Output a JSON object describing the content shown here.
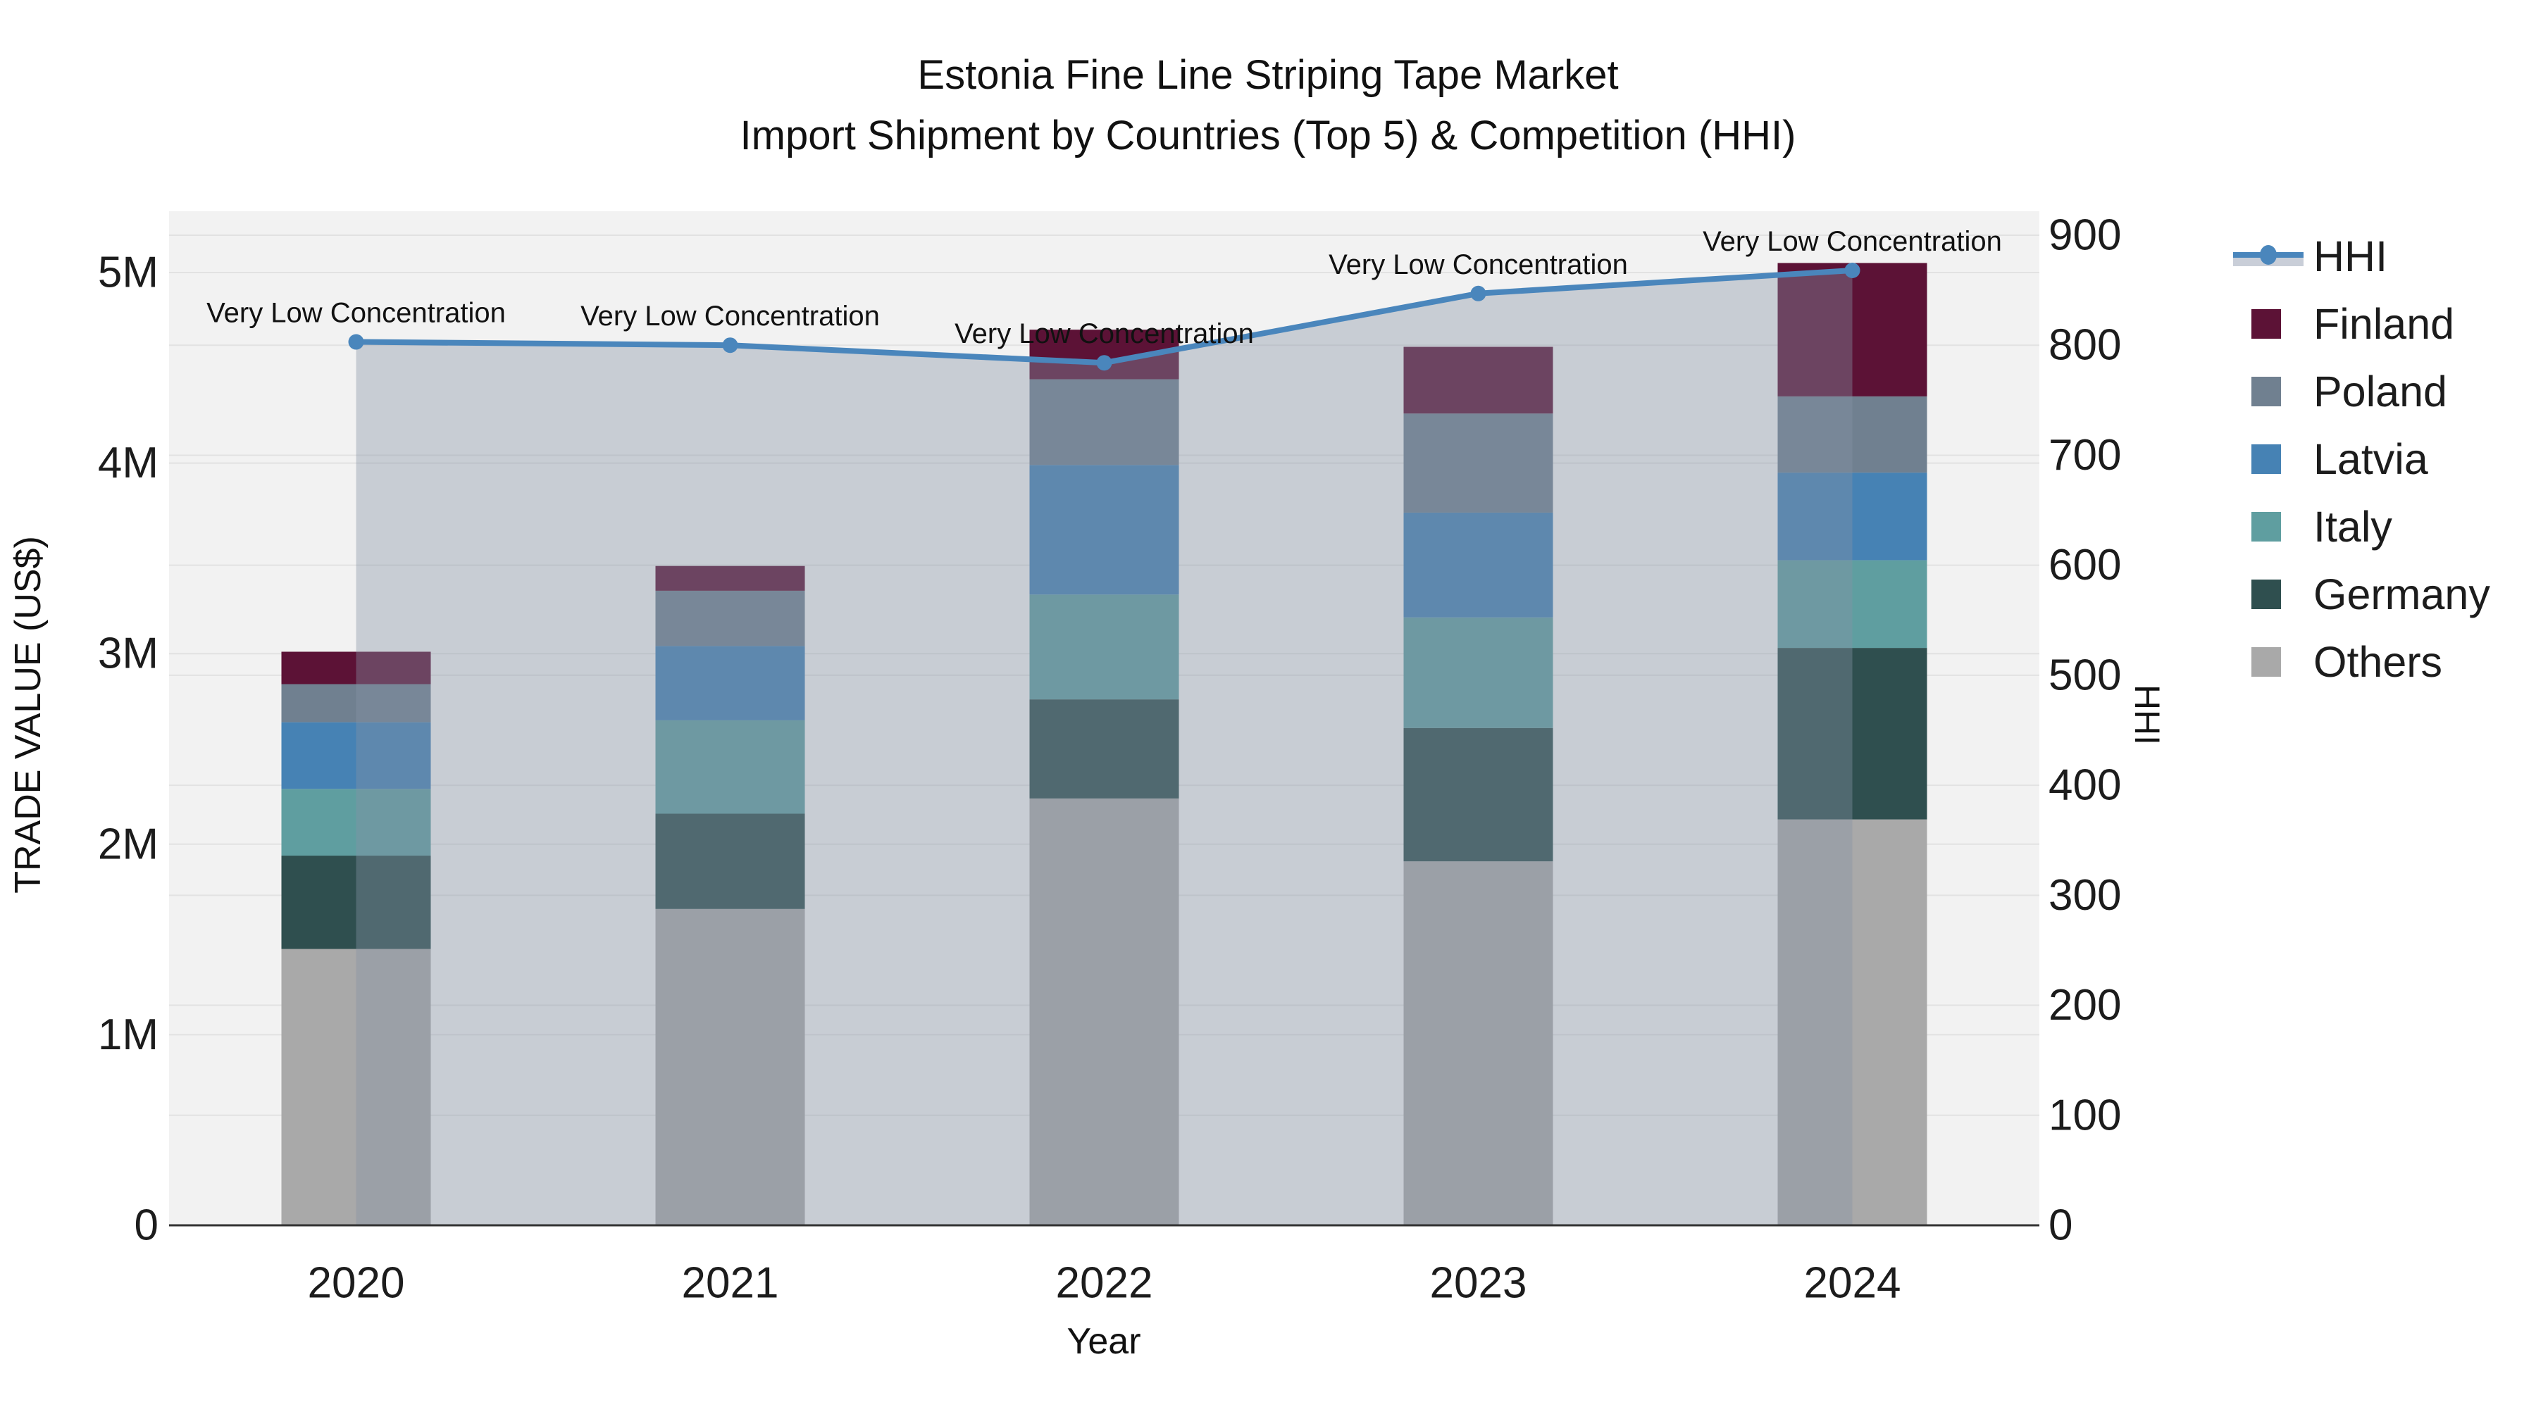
{
  "title": {
    "line1": "Estonia Fine Line Striping Tape Market",
    "line2": "Import Shipment by Countries (Top 5) & Competition (HHI)"
  },
  "axis_titles": {
    "left": "TRADE VALUE (US$)",
    "bottom": "Year",
    "right": "HHI"
  },
  "chart_data": {
    "type": "combo_stacked_bar_line",
    "title": "Estonia Fine Line Striping Tape Market — Import Shipment by Countries (Top 5) & Competition (HHI)",
    "categories": [
      "2020",
      "2021",
      "2022",
      "2023",
      "2024"
    ],
    "bar_unit": "US$ millions (trade value)",
    "bar_series_bottom_to_top": [
      {
        "name": "Others",
        "values_musd": [
          1.45,
          1.66,
          2.24,
          1.91,
          2.13
        ]
      },
      {
        "name": "Germany",
        "values_musd": [
          0.49,
          0.5,
          0.52,
          0.7,
          0.9
        ]
      },
      {
        "name": "Italy",
        "values_musd": [
          0.35,
          0.49,
          0.55,
          0.58,
          0.46
        ]
      },
      {
        "name": "Latvia",
        "values_musd": [
          0.35,
          0.39,
          0.68,
          0.55,
          0.46
        ]
      },
      {
        "name": "Poland",
        "values_musd": [
          0.2,
          0.29,
          0.45,
          0.52,
          0.4
        ]
      },
      {
        "name": "Finland",
        "values_musd": [
          0.17,
          0.13,
          0.26,
          0.35,
          0.7
        ]
      }
    ],
    "bar_totals_musd": [
      3.01,
      3.46,
      4.7,
      4.61,
      5.05
    ],
    "line_series": {
      "name": "HHI",
      "axis": "right",
      "values": [
        803,
        800,
        784,
        847,
        868
      ],
      "area_fill": true
    },
    "annotations": [
      "Very Low Concentration",
      "Very Low Concentration",
      "Very Low Concentration",
      "Very Low Concentration",
      "Very Low Concentration"
    ],
    "left_axis": {
      "label": "TRADE VALUE (US$)",
      "ticks": [
        "0",
        "1M",
        "2M",
        "3M",
        "4M",
        "5M"
      ],
      "range_musd": [
        0,
        5.32
      ]
    },
    "right_axis": {
      "label": "HHI",
      "ticks": [
        "0",
        "100",
        "200",
        "300",
        "400",
        "500",
        "600",
        "700",
        "800",
        "900"
      ],
      "range": [
        0,
        900
      ]
    },
    "x_axis": {
      "label": "Year"
    },
    "grid": true,
    "legend_position": "right",
    "legend_order": [
      "HHI",
      "Finland",
      "Poland",
      "Latvia",
      "Italy",
      "Germany",
      "Others"
    ]
  },
  "colors": {
    "Finland": "#5C1236",
    "Poland": "#708090",
    "Latvia": "#4682B4",
    "Italy": "#5F9EA0",
    "Germany": "#2F4F4F",
    "Others": "#A9A9A9",
    "hhi_line": "#4A86BC",
    "hhi_area_fill": "rgba(133,146,166,0.39)",
    "legend_band": "#C9CED8",
    "plot_background": "#F2F2F2",
    "gridline": "#E2E2E2",
    "axis_line": "#323232",
    "text": "#1C1C1C"
  }
}
